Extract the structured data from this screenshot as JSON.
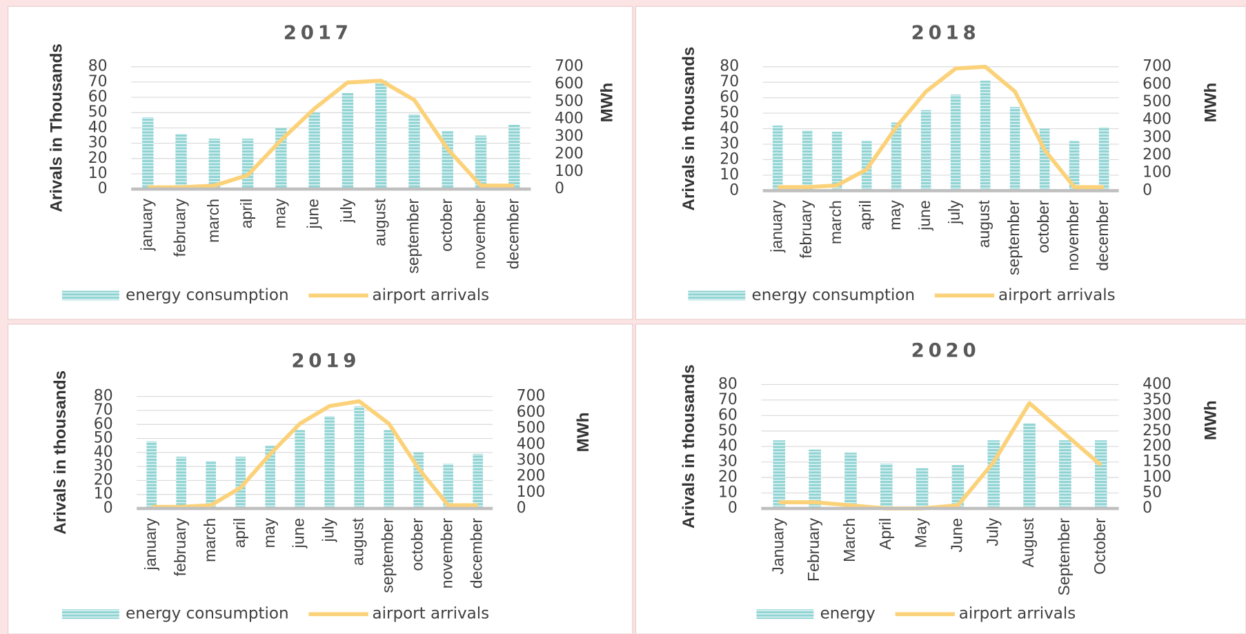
{
  "chart_data": [
    {
      "type": "bar",
      "title": "2017",
      "ylabel": "Arivals in Thousands",
      "y2label": "MWh",
      "categories": [
        "january",
        "february",
        "march",
        "april",
        "may",
        "june",
        "july",
        "august",
        "september",
        "october",
        "november",
        "december"
      ],
      "series": [
        {
          "name": "energy consumption",
          "color": "#8fd3d3",
          "values": [
            47,
            36,
            33,
            33,
            40,
            50,
            63,
            71,
            49,
            38,
            35,
            42
          ]
        },
        {
          "name": "airport arrivals",
          "color": "#fbd27a",
          "axis": "y2",
          "values": [
            10,
            10,
            20,
            80,
            280,
            460,
            610,
            620,
            510,
            230,
            20,
            20
          ]
        }
      ],
      "ylim": [
        0,
        80
      ],
      "yticks": [
        0,
        10,
        20,
        30,
        40,
        50,
        60,
        70,
        80
      ],
      "y2lim": [
        0,
        700
      ],
      "y2ticks": [
        0,
        100,
        200,
        300,
        400,
        500,
        600,
        700
      ],
      "grid": true,
      "legend": "bottom"
    },
    {
      "type": "bar",
      "title": "2018",
      "ylabel": "Arivals in thousands",
      "y2label": "MWh",
      "categories": [
        "january",
        "february",
        "march",
        "april",
        "may",
        "june",
        "july",
        "august",
        "september",
        "october",
        "november",
        "december"
      ],
      "series": [
        {
          "name": "energy consumption",
          "color": "#8fd3d3",
          "values": [
            42,
            39,
            38,
            32,
            44,
            52,
            62,
            71,
            54,
            40,
            32,
            41
          ]
        },
        {
          "name": "airport arrivals",
          "color": "#fbd27a",
          "axis": "y2",
          "values": [
            20,
            20,
            30,
            120,
            360,
            560,
            690,
            700,
            560,
            230,
            20,
            20
          ]
        }
      ],
      "ylim": [
        0,
        80
      ],
      "yticks": [
        0,
        10,
        20,
        30,
        40,
        50,
        60,
        70,
        80
      ],
      "y2lim": [
        0,
        700
      ],
      "y2ticks": [
        0,
        100,
        200,
        300,
        400,
        500,
        600,
        700
      ],
      "grid": true,
      "legend": "bottom"
    },
    {
      "type": "bar",
      "title": "2019",
      "ylabel": "Arivals in thousands",
      "y2label": "MWh",
      "categories": [
        "january",
        "february",
        "march",
        "april",
        "may",
        "june",
        "july",
        "august",
        "september",
        "october",
        "november",
        "december"
      ],
      "series": [
        {
          "name": "energy consumption",
          "color": "#8fd3d3",
          "values": [
            48,
            37,
            34,
            37,
            45,
            56,
            66,
            73,
            56,
            40,
            32,
            39
          ]
        },
        {
          "name": "airport arrivals",
          "color": "#fbd27a",
          "axis": "y2",
          "values": [
            10,
            10,
            20,
            130,
            340,
            530,
            640,
            670,
            530,
            250,
            20,
            20
          ]
        }
      ],
      "ylim": [
        0,
        80
      ],
      "yticks": [
        0,
        10,
        20,
        30,
        40,
        50,
        60,
        70,
        80
      ],
      "y2lim": [
        0,
        700
      ],
      "y2ticks": [
        0,
        100,
        200,
        300,
        400,
        500,
        600,
        700
      ],
      "grid": true,
      "legend": "bottom"
    },
    {
      "type": "bar",
      "title": "2020",
      "ylabel": "Arivals in thousands",
      "y2label": "MWh",
      "categories": [
        "January",
        "February",
        "March",
        "April",
        "May",
        "June",
        "July",
        "August",
        "September",
        "October"
      ],
      "series": [
        {
          "name": "energy",
          "color": "#8fd3d3",
          "values": [
            44,
            38,
            36,
            29,
            26,
            28,
            44,
            55,
            44,
            44
          ]
        },
        {
          "name": "airport arrivals",
          "color": "#fbd27a",
          "axis": "y2",
          "values": [
            20,
            20,
            10,
            0,
            0,
            10,
            150,
            340,
            240,
            140
          ]
        }
      ],
      "ylim": [
        0,
        80
      ],
      "yticks": [
        0,
        10,
        20,
        30,
        40,
        50,
        60,
        70,
        80
      ],
      "y2lim": [
        0,
        400
      ],
      "y2ticks": [
        0,
        50,
        100,
        150,
        200,
        250,
        300,
        350,
        400
      ],
      "grid": true,
      "legend": "bottom"
    }
  ]
}
